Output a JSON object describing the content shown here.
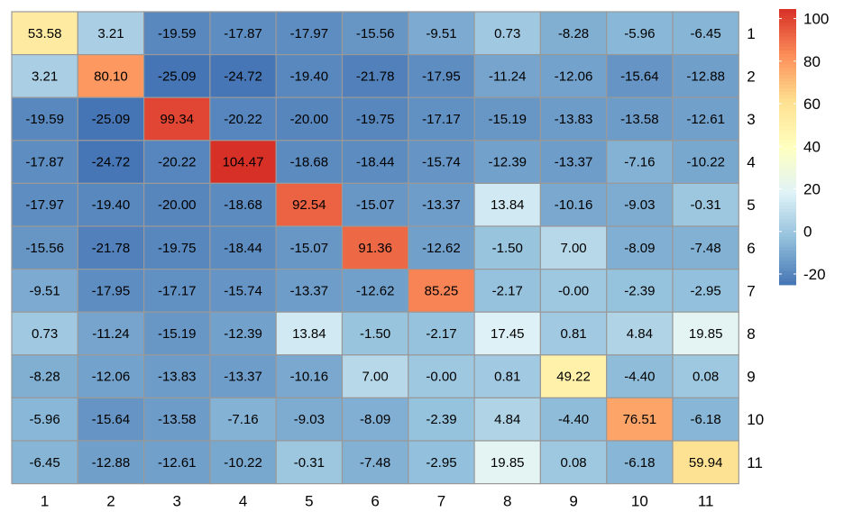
{
  "chart_data": {
    "type": "heatmap",
    "title": "",
    "xlabel": "",
    "ylabel": "",
    "x_categories": [
      "1",
      "2",
      "3",
      "4",
      "5",
      "6",
      "7",
      "8",
      "9",
      "10",
      "11"
    ],
    "y_categories": [
      "1",
      "2",
      "3",
      "4",
      "5",
      "6",
      "7",
      "8",
      "9",
      "10",
      "11"
    ],
    "values": [
      [
        53.58,
        3.21,
        -19.59,
        -17.87,
        -17.97,
        -15.56,
        -9.51,
        0.73,
        -8.28,
        -5.96,
        -6.45
      ],
      [
        3.21,
        80.1,
        -25.09,
        -24.72,
        -19.4,
        -21.78,
        -17.95,
        -11.24,
        -12.06,
        -15.64,
        -12.88
      ],
      [
        -19.59,
        -25.09,
        99.34,
        -20.22,
        -20.0,
        -19.75,
        -17.17,
        -15.19,
        -13.83,
        -13.58,
        -12.61
      ],
      [
        -17.87,
        -24.72,
        -20.22,
        104.47,
        -18.68,
        -18.44,
        -15.74,
        -12.39,
        -13.37,
        -7.16,
        -10.22
      ],
      [
        -17.97,
        -19.4,
        -20.0,
        -18.68,
        92.54,
        -15.07,
        -13.37,
        13.84,
        -10.16,
        -9.03,
        -0.31
      ],
      [
        -15.56,
        -21.78,
        -19.75,
        -18.44,
        -15.07,
        91.36,
        -12.62,
        -1.5,
        7.0,
        -8.09,
        -7.48
      ],
      [
        -9.51,
        -17.95,
        -17.17,
        -15.74,
        -13.37,
        -12.62,
        85.25,
        -2.17,
        -0.0,
        -2.39,
        -2.95
      ],
      [
        0.73,
        -11.24,
        -15.19,
        -12.39,
        13.84,
        -1.5,
        -2.17,
        17.45,
        0.81,
        4.84,
        19.85
      ],
      [
        -8.28,
        -12.06,
        -13.83,
        -13.37,
        -10.16,
        7.0,
        -0.0,
        0.81,
        49.22,
        -4.4,
        0.08
      ],
      [
        -5.96,
        -15.64,
        -13.58,
        -7.16,
        -9.03,
        -8.09,
        -2.39,
        4.84,
        -4.4,
        76.51,
        -6.18
      ],
      [
        -6.45,
        -12.88,
        -12.61,
        -10.22,
        -0.31,
        -7.48,
        -2.95,
        19.85,
        0.08,
        -6.18,
        59.94
      ]
    ],
    "value_labels": [
      [
        "53.58",
        "3.21",
        "-19.59",
        "-17.87",
        "-17.97",
        "-15.56",
        "-9.51",
        "0.73",
        "-8.28",
        "-5.96",
        "-6.45"
      ],
      [
        "3.21",
        "80.10",
        "-25.09",
        "-24.72",
        "-19.40",
        "-21.78",
        "-17.95",
        "-11.24",
        "-12.06",
        "-15.64",
        "-12.88"
      ],
      [
        "-19.59",
        "-25.09",
        "99.34",
        "-20.22",
        "-20.00",
        "-19.75",
        "-17.17",
        "-15.19",
        "-13.83",
        "-13.58",
        "-12.61"
      ],
      [
        "-17.87",
        "-24.72",
        "-20.22",
        "104.47",
        "-18.68",
        "-18.44",
        "-15.74",
        "-12.39",
        "-13.37",
        "-7.16",
        "-10.22"
      ],
      [
        "-17.97",
        "-19.40",
        "-20.00",
        "-18.68",
        "92.54",
        "-15.07",
        "-13.37",
        "13.84",
        "-10.16",
        "-9.03",
        "-0.31"
      ],
      [
        "-15.56",
        "-21.78",
        "-19.75",
        "-18.44",
        "-15.07",
        "91.36",
        "-12.62",
        "-1.50",
        "7.00",
        "-8.09",
        "-7.48"
      ],
      [
        "-9.51",
        "-17.95",
        "-17.17",
        "-15.74",
        "-13.37",
        "-12.62",
        "85.25",
        "-2.17",
        "-0.00",
        "-2.39",
        "-2.95"
      ],
      [
        "0.73",
        "-11.24",
        "-15.19",
        "-12.39",
        "13.84",
        "-1.50",
        "-2.17",
        "17.45",
        "0.81",
        "4.84",
        "19.85"
      ],
      [
        "-8.28",
        "-12.06",
        "-13.83",
        "-13.37",
        "-10.16",
        "7.00",
        "-0.00",
        "0.81",
        "49.22",
        "-4.40",
        "0.08"
      ],
      [
        "-5.96",
        "-15.64",
        "-13.58",
        "-7.16",
        "-9.03",
        "-8.09",
        "-2.39",
        "4.84",
        "-4.40",
        "76.51",
        "-6.18"
      ],
      [
        "-6.45",
        "-12.88",
        "-12.61",
        "-10.22",
        "-0.31",
        "-7.48",
        "-2.95",
        "19.85",
        "0.08",
        "-6.18",
        "59.94"
      ]
    ],
    "color_scale": {
      "min": -25.09,
      "max": 104.47,
      "palette": "RdYlBu (reversed)",
      "stops": [
        "#4575B4",
        "#91BFDB",
        "#E0F3F8",
        "#FFFFBF",
        "#FEE090",
        "#FC8D59",
        "#D73027"
      ]
    },
    "cell_border_color": "#999999",
    "legend": {
      "position": "right",
      "ticks": [
        100,
        80,
        60,
        40,
        20,
        0,
        -20
      ],
      "tick_labels": [
        "100",
        "80",
        "60",
        "40",
        "20",
        "0",
        "-20"
      ]
    },
    "grid": false
  }
}
